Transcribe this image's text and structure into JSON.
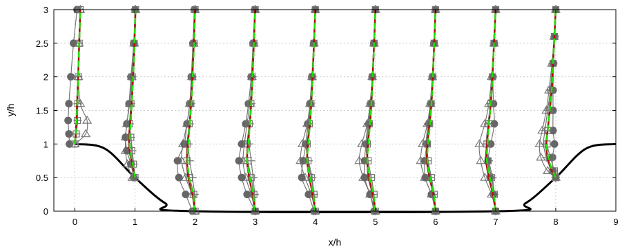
{
  "chart_data": {
    "type": "line",
    "xlabel": "x/h",
    "ylabel": "y/h",
    "xlim": [
      -0.35,
      9
    ],
    "ylim": [
      0,
      3
    ],
    "x_ticks": [
      0,
      1,
      2,
      3,
      4,
      5,
      6,
      7,
      8,
      9
    ],
    "y_ticks": [
      0,
      0.5,
      1,
      1.5,
      2,
      2.5,
      3
    ],
    "y_tick_labels": [
      "0",
      "0.5",
      "1",
      "1.5",
      "2",
      "2.5",
      "3"
    ],
    "grid": true,
    "profile_stations": [
      0,
      1,
      2,
      3,
      4,
      5,
      6,
      7,
      8
    ],
    "profile_scale": 0.45,
    "colors": {
      "hill": "#000000",
      "red_line": "#a50f15",
      "green_dashed": "#22dd00",
      "gray_markers": "#777777",
      "gray_fill": "#666666",
      "grid": "#cccccc"
    },
    "hill_wall": {
      "x": [
        0,
        0.5,
        1,
        1.5,
        1.93,
        7.07,
        7.5,
        8,
        8.5,
        9
      ],
      "y": [
        1,
        0.93,
        0.5,
        0.12,
        0,
        0,
        0.12,
        0.5,
        0.93,
        1
      ]
    },
    "profiles": [
      {
        "station": 0,
        "y": [
          1.0,
          1.15,
          1.35,
          1.6,
          2.0,
          2.5,
          3.0
        ],
        "red": [
          0.0,
          0.03,
          0.06,
          0.08,
          0.12,
          0.16,
          0.2
        ],
        "green": [
          0.0,
          0.03,
          0.06,
          0.09,
          0.12,
          0.16,
          0.2
        ],
        "squares": [
          0.0,
          0.05,
          0.09,
          0.11,
          0.13,
          0.16,
          0.2
        ],
        "triangles": [
          0.0,
          0.4,
          0.45,
          0.2,
          0.13,
          0.15,
          0.2
        ],
        "plus": [
          0.0,
          0.05,
          0.1,
          0.1,
          0.12,
          0.15,
          0.2
        ],
        "circles": [
          -0.2,
          -0.22,
          -0.25,
          -0.22,
          -0.15,
          -0.05,
          0.08
        ]
      },
      {
        "station": 1,
        "y": [
          0.5,
          0.7,
          0.9,
          1.1,
          1.3,
          1.6,
          2.0,
          2.5,
          3.0
        ],
        "red": [
          0.0,
          -0.1,
          -0.2,
          -0.22,
          -0.18,
          -0.12,
          -0.07,
          -0.02,
          0.02
        ],
        "green": [
          0.0,
          -0.08,
          -0.18,
          -0.2,
          -0.16,
          -0.12,
          -0.07,
          -0.02,
          0.02
        ],
        "squares": [
          0.0,
          -0.06,
          -0.12,
          -0.16,
          -0.2,
          -0.15,
          -0.1,
          -0.03,
          0.02
        ],
        "triangles": [
          -0.1,
          -0.28,
          -0.35,
          -0.35,
          -0.3,
          -0.2,
          -0.12,
          -0.03,
          0.02
        ],
        "plus": [
          0.0,
          -0.05,
          -0.1,
          -0.15,
          -0.2,
          -0.15,
          -0.1,
          -0.03,
          0.02
        ],
        "circles": [
          -0.05,
          -0.15,
          -0.3,
          -0.35,
          -0.3,
          -0.22,
          -0.15,
          -0.05,
          0.0
        ]
      },
      {
        "station": 2,
        "y": [
          0.0,
          0.25,
          0.5,
          0.75,
          1.0,
          1.3,
          1.6,
          2.0,
          2.5,
          3.0
        ],
        "red": [
          0.0,
          -0.1,
          -0.25,
          -0.3,
          -0.27,
          -0.2,
          -0.15,
          -0.1,
          -0.05,
          0.0
        ],
        "green": [
          0.0,
          -0.08,
          -0.22,
          -0.28,
          -0.25,
          -0.2,
          -0.14,
          -0.09,
          -0.04,
          0.0
        ],
        "squares": [
          0.0,
          -0.05,
          -0.2,
          -0.3,
          -0.3,
          -0.22,
          -0.16,
          -0.1,
          -0.04,
          0.0
        ],
        "triangles": [
          0.0,
          -0.12,
          -0.35,
          -0.5,
          -0.45,
          -0.3,
          -0.2,
          -0.12,
          -0.05,
          0.0
        ],
        "plus": [
          0.0,
          -0.02,
          -0.1,
          -0.2,
          -0.25,
          -0.2,
          -0.15,
          -0.1,
          -0.04,
          0.0
        ],
        "circles": [
          -0.1,
          -0.35,
          -0.6,
          -0.65,
          -0.4,
          -0.3,
          -0.2,
          -0.14,
          -0.08,
          -0.03
        ]
      },
      {
        "station": 3,
        "y": [
          0.0,
          0.25,
          0.5,
          0.75,
          1.0,
          1.3,
          1.6,
          2.0,
          2.5,
          3.0
        ],
        "red": [
          0.0,
          -0.1,
          -0.22,
          -0.3,
          -0.27,
          -0.2,
          -0.15,
          -0.1,
          -0.05,
          0.0
        ],
        "green": [
          0.0,
          -0.08,
          -0.2,
          -0.3,
          -0.25,
          -0.2,
          -0.15,
          -0.1,
          -0.05,
          0.0
        ],
        "squares": [
          0.0,
          -0.05,
          -0.15,
          -0.27,
          -0.3,
          -0.22,
          -0.16,
          -0.11,
          -0.05,
          0.0
        ],
        "triangles": [
          0.0,
          -0.15,
          -0.35,
          -0.45,
          -0.4,
          -0.3,
          -0.2,
          -0.12,
          -0.05,
          0.0
        ],
        "plus": [
          0.0,
          -0.02,
          -0.08,
          -0.15,
          -0.22,
          -0.2,
          -0.15,
          -0.1,
          -0.05,
          0.0
        ],
        "circles": [
          0.0,
          -0.3,
          -0.5,
          -0.6,
          -0.5,
          -0.35,
          -0.25,
          -0.15,
          -0.08,
          -0.02
        ]
      },
      {
        "station": 4,
        "y": [
          0.0,
          0.25,
          0.5,
          0.75,
          1.0,
          1.3,
          1.6,
          2.0,
          2.5,
          3.0
        ],
        "red": [
          0.0,
          -0.1,
          -0.22,
          -0.3,
          -0.28,
          -0.2,
          -0.15,
          -0.1,
          -0.05,
          0.0
        ],
        "green": [
          0.0,
          -0.08,
          -0.2,
          -0.3,
          -0.26,
          -0.2,
          -0.15,
          -0.1,
          -0.05,
          0.0
        ],
        "squares": [
          0.0,
          -0.05,
          -0.15,
          -0.27,
          -0.3,
          -0.22,
          -0.16,
          -0.11,
          -0.05,
          0.0
        ],
        "triangles": [
          0.0,
          -0.15,
          -0.38,
          -0.55,
          -0.48,
          -0.3,
          -0.2,
          -0.12,
          -0.05,
          0.0
        ],
        "plus": [
          0.0,
          -0.05,
          -0.12,
          -0.25,
          -0.35,
          -0.25,
          -0.18,
          -0.11,
          -0.05,
          0.0
        ],
        "circles": [
          -0.05,
          -0.25,
          -0.5,
          -0.45,
          -0.35,
          -0.28,
          -0.2,
          -0.13,
          -0.06,
          0.0
        ]
      },
      {
        "station": 5,
        "y": [
          0.0,
          0.25,
          0.5,
          0.75,
          1.0,
          1.3,
          1.6,
          2.0,
          2.5,
          3.0
        ],
        "red": [
          0.0,
          -0.1,
          -0.25,
          -0.3,
          -0.28,
          -0.2,
          -0.15,
          -0.1,
          -0.05,
          0.0
        ],
        "green": [
          0.0,
          -0.08,
          -0.22,
          -0.3,
          -0.26,
          -0.2,
          -0.15,
          -0.1,
          -0.05,
          0.0
        ],
        "squares": [
          0.0,
          -0.05,
          -0.15,
          -0.27,
          -0.3,
          -0.22,
          -0.16,
          -0.11,
          -0.05,
          0.0
        ],
        "triangles": [
          0.0,
          -0.2,
          -0.45,
          -0.6,
          -0.5,
          -0.3,
          -0.2,
          -0.12,
          -0.05,
          0.0
        ],
        "plus": [
          0.0,
          -0.08,
          -0.2,
          -0.3,
          -0.35,
          -0.28,
          -0.18,
          -0.11,
          -0.05,
          0.0
        ],
        "circles": [
          -0.05,
          -0.2,
          -0.4,
          -0.4,
          -0.35,
          -0.25,
          -0.18,
          -0.12,
          -0.06,
          0.0
        ]
      },
      {
        "station": 6,
        "y": [
          0.0,
          0.25,
          0.5,
          0.75,
          1.0,
          1.3,
          1.6,
          2.0,
          2.5,
          3.0
        ],
        "red": [
          0.0,
          -0.08,
          -0.22,
          -0.32,
          -0.3,
          -0.22,
          -0.15,
          -0.1,
          -0.05,
          0.0
        ],
        "green": [
          0.0,
          -0.07,
          -0.2,
          -0.3,
          -0.28,
          -0.2,
          -0.15,
          -0.1,
          -0.05,
          0.0
        ],
        "squares": [
          0.0,
          -0.05,
          -0.15,
          -0.27,
          -0.3,
          -0.22,
          -0.16,
          -0.1,
          -0.05,
          0.0
        ],
        "triangles": [
          0.0,
          -0.15,
          -0.4,
          -0.55,
          -0.48,
          -0.3,
          -0.2,
          -0.12,
          -0.05,
          0.0
        ],
        "plus": [
          0.0,
          -0.08,
          -0.18,
          -0.3,
          -0.35,
          -0.28,
          -0.18,
          -0.11,
          -0.05,
          0.0
        ],
        "circles": [
          0.0,
          -0.15,
          -0.38,
          -0.4,
          -0.32,
          -0.25,
          -0.18,
          -0.12,
          -0.06,
          0.0
        ]
      },
      {
        "station": 7,
        "y": [
          0.0,
          0.25,
          0.5,
          0.75,
          1.0,
          1.3,
          1.6,
          2.0,
          2.5,
          3.0
        ],
        "red": [
          0.0,
          -0.1,
          -0.25,
          -0.35,
          -0.32,
          -0.25,
          -0.18,
          -0.12,
          -0.06,
          0.0
        ],
        "green": [
          0.0,
          -0.08,
          -0.22,
          -0.32,
          -0.3,
          -0.25,
          -0.18,
          -0.12,
          -0.06,
          0.0
        ],
        "squares": [
          0.0,
          -0.05,
          -0.15,
          -0.28,
          -0.32,
          -0.25,
          -0.18,
          -0.12,
          -0.06,
          0.0
        ],
        "triangles": [
          0.0,
          -0.15,
          -0.4,
          -0.55,
          -0.6,
          -0.4,
          -0.25,
          -0.15,
          -0.06,
          0.0
        ],
        "plus": [
          0.0,
          -0.05,
          -0.12,
          -0.25,
          -0.35,
          -0.28,
          -0.2,
          -0.12,
          -0.06,
          0.0
        ],
        "circles": [
          0.0,
          -0.08,
          -0.2,
          -0.28,
          -0.18,
          -0.05,
          -0.08,
          -0.1,
          -0.05,
          0.0
        ]
      },
      {
        "station": 8,
        "y": [
          0.5,
          0.6,
          0.8,
          1.0,
          1.2,
          1.5,
          1.8,
          2.2,
          2.6,
          3.0
        ],
        "red": [
          0.0,
          -0.15,
          -0.3,
          -0.35,
          -0.3,
          -0.22,
          -0.15,
          -0.1,
          -0.05,
          0.0
        ],
        "green": [
          0.0,
          -0.12,
          -0.28,
          -0.33,
          -0.3,
          -0.22,
          -0.15,
          -0.1,
          -0.05,
          0.0
        ],
        "squares": [
          0.0,
          -0.05,
          -0.2,
          -0.32,
          -0.3,
          -0.25,
          -0.18,
          -0.1,
          -0.05,
          0.0
        ],
        "triangles": [
          0.0,
          -0.3,
          -0.55,
          -0.6,
          -0.5,
          -0.35,
          -0.25,
          -0.14,
          -0.06,
          0.0
        ],
        "plus": [
          0.0,
          -0.15,
          -0.35,
          -0.45,
          -0.4,
          -0.3,
          -0.2,
          -0.12,
          -0.05,
          0.0
        ],
        "circles": [
          0.0,
          -0.1,
          -0.12,
          -0.05,
          -0.1,
          -0.1,
          -0.1,
          -0.08,
          -0.04,
          0.0
        ]
      }
    ]
  }
}
